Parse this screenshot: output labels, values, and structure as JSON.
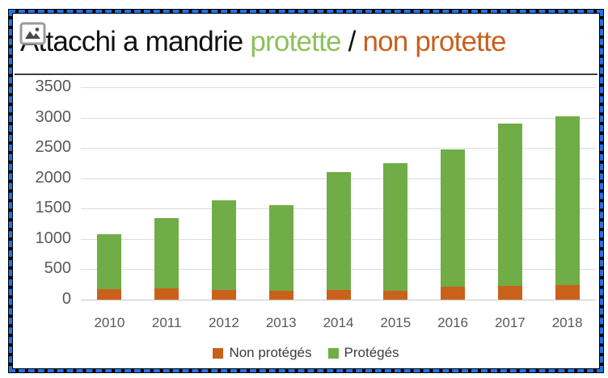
{
  "frame": {
    "border_color": "#000000",
    "selection_dash_color": "#2472e8"
  },
  "title": {
    "text_black_lead": "Attacchi a mandrie ",
    "text_green": "protette",
    "text_slash": " / ",
    "text_orange": "non protette",
    "color_green": "#8dc15c",
    "color_orange": "#c7611e"
  },
  "placeholder_icon": "broken-image-icon",
  "chart_data": {
    "type": "bar",
    "stacked": true,
    "title": "Attacchi a mandrie protette / non protette",
    "categories": [
      "2010",
      "2011",
      "2012",
      "2013",
      "2014",
      "2015",
      "2016",
      "2017",
      "2018"
    ],
    "series": [
      {
        "name": "Non protégés",
        "color": "#c9611a",
        "values": [
          170,
          180,
          165,
          150,
          165,
          150,
          210,
          225,
          245
        ]
      },
      {
        "name": "Protégés",
        "color": "#70ad47",
        "values": [
          910,
          1170,
          1475,
          1410,
          1935,
          2100,
          2270,
          2675,
          2775
        ]
      }
    ],
    "stack_totals": [
      1080,
      1350,
      1640,
      1560,
      2100,
      2250,
      2480,
      2900,
      3020
    ],
    "ylim": [
      0,
      3500
    ],
    "ytick_interval": 500,
    "ytick_labels": [
      "3500",
      "3000",
      "2500",
      "2000",
      "1500",
      "1000",
      "500",
      "0"
    ],
    "xlabel": "",
    "ylabel": "",
    "grid": true,
    "gridline_color": "#dddddd",
    "axis_text_color": "#595959",
    "legend_position": "bottom",
    "legend": [
      "Non protégés",
      "Protégés"
    ]
  }
}
